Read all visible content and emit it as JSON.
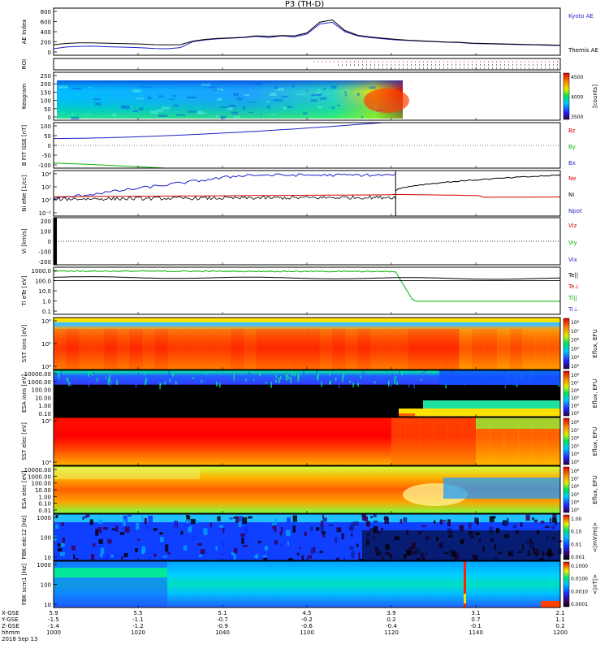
{
  "title": "P3 (TH-D)",
  "colors": {
    "blue": "#1f1fc8",
    "red": "#d40000",
    "green": "#00b400",
    "black": "#000000"
  },
  "chart_data": [
    {
      "id": "ae",
      "type": "line",
      "ylabel": "AE Index",
      "yticks": [
        "800",
        "600",
        "400",
        "200",
        "0"
      ],
      "ylim": [
        0,
        800
      ],
      "legend": [
        "Kyoto AE",
        "Themis AE"
      ],
      "legend_colors": [
        "#1f1fc8",
        "#000000"
      ],
      "x": [
        1000,
        1005,
        1010,
        1015,
        1020,
        1025,
        1030,
        1035,
        1040,
        1045,
        1050,
        1055,
        1060,
        1065,
        1070,
        1075,
        1080,
        1085,
        1090,
        1095,
        1100,
        1105,
        1110,
        1115,
        1120,
        1125,
        1130,
        1135,
        1140,
        1145,
        1150,
        1155,
        1160,
        1165,
        1170,
        1175,
        1180,
        1185,
        1190,
        1195,
        1200
      ],
      "series": [
        {
          "name": "Kyoto AE",
          "values": [
            110,
            140,
            150,
            155,
            145,
            140,
            135,
            125,
            115,
            110,
            130,
            230,
            260,
            280,
            290,
            300,
            320,
            300,
            330,
            310,
            360,
            530,
            560,
            400,
            330,
            300,
            280,
            260,
            250,
            240,
            230,
            220,
            215,
            200,
            195,
            190,
            185,
            180,
            175,
            170,
            165
          ]
        },
        {
          "name": "Themis AE",
          "values": [
            180,
            200,
            210,
            210,
            205,
            200,
            195,
            190,
            180,
            175,
            180,
            240,
            270,
            285,
            295,
            305,
            330,
            320,
            335,
            330,
            380,
            560,
            600,
            420,
            340,
            310,
            290,
            270,
            255,
            245,
            235,
            225,
            220,
            205,
            200,
            195,
            190,
            185,
            180,
            175,
            170
          ]
        }
      ]
    },
    {
      "id": "roi",
      "type": "line",
      "ylabel": "ROI",
      "legend": [],
      "yticks": []
    },
    {
      "id": "keogram",
      "type": "heatmap",
      "ylabel": "Keogram",
      "yticks": [
        "250",
        "200",
        "150",
        "100",
        "50",
        "0"
      ],
      "ylim": [
        0,
        250
      ],
      "colorbar_ticks": [
        "4500",
        "4000",
        "3500"
      ],
      "colorbar_label": "[counts]"
    },
    {
      "id": "bfield",
      "type": "line",
      "ylabel": "B FIT GSE [nT]",
      "yticks": [
        "100",
        "50",
        "0",
        "-50",
        "-100"
      ],
      "ylim": [
        -100,
        100
      ],
      "legend": [
        "Bz",
        "By",
        "Bx"
      ],
      "legend_colors": [
        "#d40000",
        "#00b400",
        "#1f1fc8"
      ]
    },
    {
      "id": "density",
      "type": "line",
      "ylabel": "Ni eNe [1/cc]",
      "yticks": [
        "10⁴",
        "10²",
        "10⁰",
        "10⁻²"
      ],
      "ylim": [
        -3,
        5
      ],
      "legend": [
        "Ne",
        "Ni",
        "Npot"
      ],
      "legend_colors": [
        "#d40000",
        "#000000",
        "#1f1fc8"
      ]
    },
    {
      "id": "velocity",
      "type": "line",
      "ylabel": "Vi [km/s]",
      "yticks": [
        "200",
        "100",
        "0",
        "-100",
        "-200"
      ],
      "ylim": [
        -250,
        250
      ],
      "legend": [
        "Viz",
        "Viy",
        "Vix"
      ],
      "legend_colors": [
        "#d40000",
        "#00b400",
        "#1f1fc8"
      ]
    },
    {
      "id": "temp",
      "type": "line",
      "ylabel": "Ti eTe [eV]",
      "yticks": [
        "1000.0",
        "100.0",
        "10.0",
        "1.0",
        "0.1"
      ],
      "ylim": [
        -1.3,
        3.6
      ],
      "legend": [
        "Te||",
        "Te⊥",
        "Ti||",
        "Ti⊥"
      ],
      "legend_colors": [
        "#000000",
        "#d40000",
        "#00b400",
        "#1f1fc8"
      ]
    },
    {
      "id": "sst_ion",
      "type": "heatmap",
      "ylabel": "SST ions [eV]",
      "yticks": [
        "10⁶",
        "10⁵",
        "10⁴"
      ],
      "colorbar_ticks": [
        "10⁸",
        "10⁷",
        "10⁶",
        "10⁵",
        "10⁴",
        "10³"
      ],
      "colorbar_label": "Eflux, EFU"
    },
    {
      "id": "esa_ion",
      "type": "heatmap",
      "ylabel": "ESA ions [eV]",
      "yticks": [
        "10000.00",
        "1000.00",
        "100.00",
        "10.00",
        "1.00",
        "0.10"
      ],
      "colorbar_ticks": [
        "10⁸",
        "10⁷",
        "10⁶",
        "10⁵",
        "10⁴",
        "10³"
      ],
      "colorbar_label": "Eflux, EFU"
    },
    {
      "id": "sst_elec",
      "type": "heatmap",
      "ylabel": "SST elec [eV]",
      "yticks": [
        "10⁵",
        "10⁴"
      ],
      "colorbar_ticks": [
        "10⁸",
        "10⁷",
        "10⁶",
        "10⁵",
        "10⁴",
        "10³"
      ],
      "colorbar_label": "Eflux, EFU"
    },
    {
      "id": "esa_elec",
      "type": "heatmap",
      "ylabel": "ESA elec [eV]",
      "yticks": [
        "10000.00",
        "1000.00",
        "100.00",
        "10.00",
        "1.00",
        "0.10",
        "0.01"
      ],
      "colorbar_ticks": [
        "10⁸",
        "10⁷",
        "10⁶",
        "10⁵",
        "10⁴",
        "10³"
      ],
      "colorbar_label": "Eflux, EFU"
    },
    {
      "id": "fbk_e",
      "type": "heatmap",
      "ylabel": "FBK edc12 [Hz]",
      "yticks": [
        "1000",
        "100",
        "10"
      ],
      "colorbar_ticks": [
        "1.00",
        "0.10",
        "0.01",
        "0.001"
      ],
      "colorbar_label": "<|mV/m|>"
    },
    {
      "id": "fbk_b",
      "type": "heatmap",
      "ylabel": "FBK scm1 [Hz]",
      "yticks": [
        "1000",
        "100",
        "10"
      ],
      "colorbar_ticks": [
        "0.1000",
        "0.0100",
        "0.0010",
        "0.0001"
      ],
      "colorbar_label": "<|nT|>"
    }
  ],
  "x_axis": {
    "row_labels": [
      "X-GSE",
      "Y-GSE",
      "Z-GSE",
      "hhmm",
      "2018 Sep 13"
    ],
    "ticks": [
      {
        "values": [
          "5.9",
          "-1.5",
          "-1.4",
          "1000"
        ]
      },
      {
        "values": [
          "5.5",
          "-1.1",
          "-1.2",
          "1020"
        ]
      },
      {
        "values": [
          "5.1",
          "-0.7",
          "-0.9",
          "1040"
        ]
      },
      {
        "values": [
          "4.5",
          "-0.2",
          "-0.6",
          "1100"
        ]
      },
      {
        "values": [
          "3.9",
          "0.2",
          "-0.4",
          "1120"
        ]
      },
      {
        "values": [
          "3.1",
          "0.7",
          "-0.1",
          "1140"
        ]
      },
      {
        "values": [
          "2.1",
          "1.1",
          "0.2",
          "1200"
        ]
      }
    ]
  }
}
